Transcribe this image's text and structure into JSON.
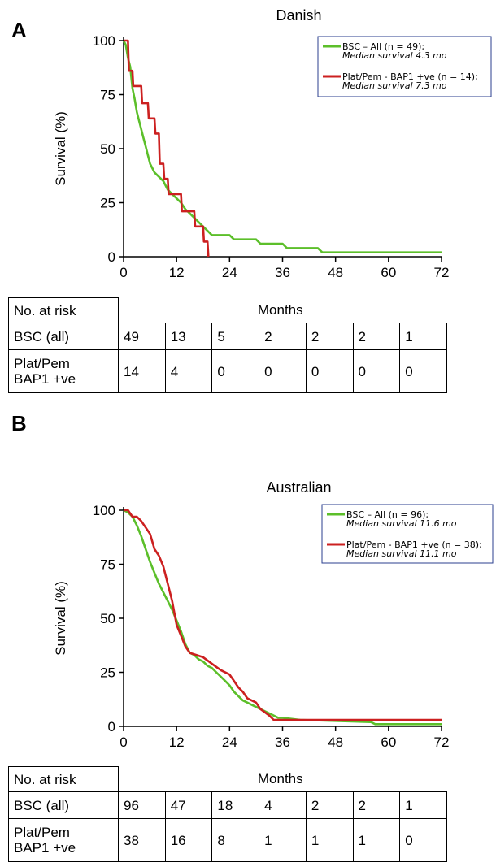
{
  "panels": [
    {
      "letter": "A",
      "chart_data": {
        "type": "line",
        "title": "Danish",
        "xlabel": "Months",
        "ylabel": "Survival (%)",
        "xlim": [
          0,
          72
        ],
        "ylim": [
          0,
          100
        ],
        "xticks": [
          0,
          12,
          24,
          36,
          48,
          60,
          72
        ],
        "yticks": [
          0,
          25,
          50,
          75,
          100
        ],
        "legend_position": "top-right",
        "series": [
          {
            "name": "BSC – All (n = 49);",
            "note": "Median survival 4.3 mo",
            "color": "#5cbf2a",
            "points": [
              [
                0,
                100
              ],
              [
                0.5,
                98
              ],
              [
                1,
                92
              ],
              [
                1.5,
                88
              ],
              [
                2,
                78
              ],
              [
                2.5,
                73
              ],
              [
                3,
                67
              ],
              [
                3.5,
                63
              ],
              [
                4,
                59
              ],
              [
                4.5,
                55
              ],
              [
                5,
                51
              ],
              [
                5.5,
                47
              ],
              [
                6,
                43
              ],
              [
                6.5,
                41
              ],
              [
                7,
                39
              ],
              [
                8,
                37
              ],
              [
                9,
                35
              ],
              [
                10,
                31
              ],
              [
                11,
                29
              ],
              [
                12,
                27
              ],
              [
                13,
                25
              ],
              [
                14,
                22
              ],
              [
                15,
                20
              ],
              [
                16,
                18
              ],
              [
                17,
                16
              ],
              [
                18,
                14
              ],
              [
                19,
                12
              ],
              [
                20,
                10
              ],
              [
                24,
                10
              ],
              [
                25,
                8
              ],
              [
                30,
                8
              ],
              [
                31,
                6
              ],
              [
                36,
                6
              ],
              [
                37,
                4
              ],
              [
                44,
                4
              ],
              [
                45,
                2
              ],
              [
                60,
                2
              ],
              [
                61,
                2
              ],
              [
                72,
                2
              ]
            ]
          },
          {
            "name": "Plat/Pem - BAP1 +ve (n = 14);",
            "note": "Median survival 7.3 mo",
            "color": "#cc2020",
            "points": [
              [
                0,
                100
              ],
              [
                1,
                100
              ],
              [
                1.2,
                86
              ],
              [
                2,
                86
              ],
              [
                2.2,
                79
              ],
              [
                4,
                79
              ],
              [
                4.2,
                71
              ],
              [
                5.5,
                71
              ],
              [
                5.7,
                64
              ],
              [
                7,
                64
              ],
              [
                7.2,
                57
              ],
              [
                8,
                57
              ],
              [
                8.2,
                43
              ],
              [
                9,
                43
              ],
              [
                9.2,
                36
              ],
              [
                10,
                36
              ],
              [
                10.2,
                29
              ],
              [
                13,
                29
              ],
              [
                13.2,
                21
              ],
              [
                16,
                21
              ],
              [
                16.2,
                14
              ],
              [
                18,
                14
              ],
              [
                18.2,
                7
              ],
              [
                19,
                7
              ],
              [
                19.2,
                0
              ]
            ]
          }
        ]
      },
      "risk_table": {
        "header_label": "No. at risk",
        "rows": [
          {
            "label": "BSC (all)",
            "values": [
              "49",
              "13",
              "5",
              "2",
              "2",
              "2",
              "1"
            ]
          },
          {
            "label_line1": "Plat/Pem",
            "label_line2": "BAP1 +ve",
            "values": [
              "14",
              "4",
              "0",
              "0",
              "0",
              "0",
              "0"
            ]
          }
        ]
      }
    },
    {
      "letter": "B",
      "chart_data": {
        "type": "line",
        "title": "Australian",
        "xlabel": "Months",
        "ylabel": "Survival (%)",
        "xlim": [
          0,
          72
        ],
        "ylim": [
          0,
          100
        ],
        "xticks": [
          0,
          12,
          24,
          36,
          48,
          60,
          72
        ],
        "yticks": [
          0,
          25,
          50,
          75,
          100
        ],
        "legend_position": "top-right",
        "series": [
          {
            "name": "BSC – All (n = 96);",
            "note": "Median survival 11.6 mo",
            "color": "#5cbf2a",
            "points": [
              [
                0,
                100
              ],
              [
                1,
                99
              ],
              [
                2,
                97
              ],
              [
                3,
                93
              ],
              [
                4,
                88
              ],
              [
                5,
                82
              ],
              [
                6,
                76
              ],
              [
                7,
                71
              ],
              [
                8,
                66
              ],
              [
                9,
                62
              ],
              [
                10,
                58
              ],
              [
                11,
                54
              ],
              [
                12,
                49
              ],
              [
                13,
                44
              ],
              [
                14,
                38
              ],
              [
                15,
                34
              ],
              [
                16,
                33
              ],
              [
                17,
                31
              ],
              [
                18,
                30
              ],
              [
                19,
                28
              ],
              [
                20,
                27
              ],
              [
                21,
                25
              ],
              [
                22,
                23
              ],
              [
                23,
                21
              ],
              [
                24,
                19
              ],
              [
                25,
                16
              ],
              [
                26,
                14
              ],
              [
                27,
                12
              ],
              [
                28,
                11
              ],
              [
                29,
                10
              ],
              [
                30,
                9
              ],
              [
                31,
                8
              ],
              [
                32,
                7
              ],
              [
                33,
                6
              ],
              [
                34,
                5
              ],
              [
                35,
                4
              ],
              [
                36,
                4
              ],
              [
                40,
                3
              ],
              [
                56,
                2
              ],
              [
                57,
                1
              ],
              [
                72,
                1
              ]
            ]
          },
          {
            "name": "Plat/Pem - BAP1 +ve (n = 38);",
            "note": "Median survival 11.1 mo",
            "color": "#cc2020",
            "points": [
              [
                0,
                100
              ],
              [
                1,
                100
              ],
              [
                2,
                97
              ],
              [
                3,
                97
              ],
              [
                4,
                95
              ],
              [
                5,
                92
              ],
              [
                6,
                89
              ],
              [
                7,
                82
              ],
              [
                8,
                79
              ],
              [
                9,
                74
              ],
              [
                10,
                66
              ],
              [
                11,
                58
              ],
              [
                12,
                47
              ],
              [
                13,
                42
              ],
              [
                14,
                37
              ],
              [
                15,
                34
              ],
              [
                18,
                32
              ],
              [
                20,
                29
              ],
              [
                22,
                26
              ],
              [
                24,
                24
              ],
              [
                25,
                21
              ],
              [
                26,
                18
              ],
              [
                27,
                16
              ],
              [
                28,
                13
              ],
              [
                30,
                11
              ],
              [
                31,
                8
              ],
              [
                33,
                5
              ],
              [
                34,
                3
              ],
              [
                38,
                3
              ],
              [
                39,
                3
              ],
              [
                72,
                3
              ]
            ]
          }
        ]
      },
      "risk_table": {
        "header_label": "No. at risk",
        "rows": [
          {
            "label": "BSC (all)",
            "values": [
              "96",
              "47",
              "18",
              "4",
              "2",
              "2",
              "1"
            ]
          },
          {
            "label_line1": "Plat/Pem",
            "label_line2": "BAP1 +ve",
            "values": [
              "38",
              "16",
              "8",
              "1",
              "1",
              "1",
              "0"
            ]
          }
        ]
      }
    }
  ]
}
